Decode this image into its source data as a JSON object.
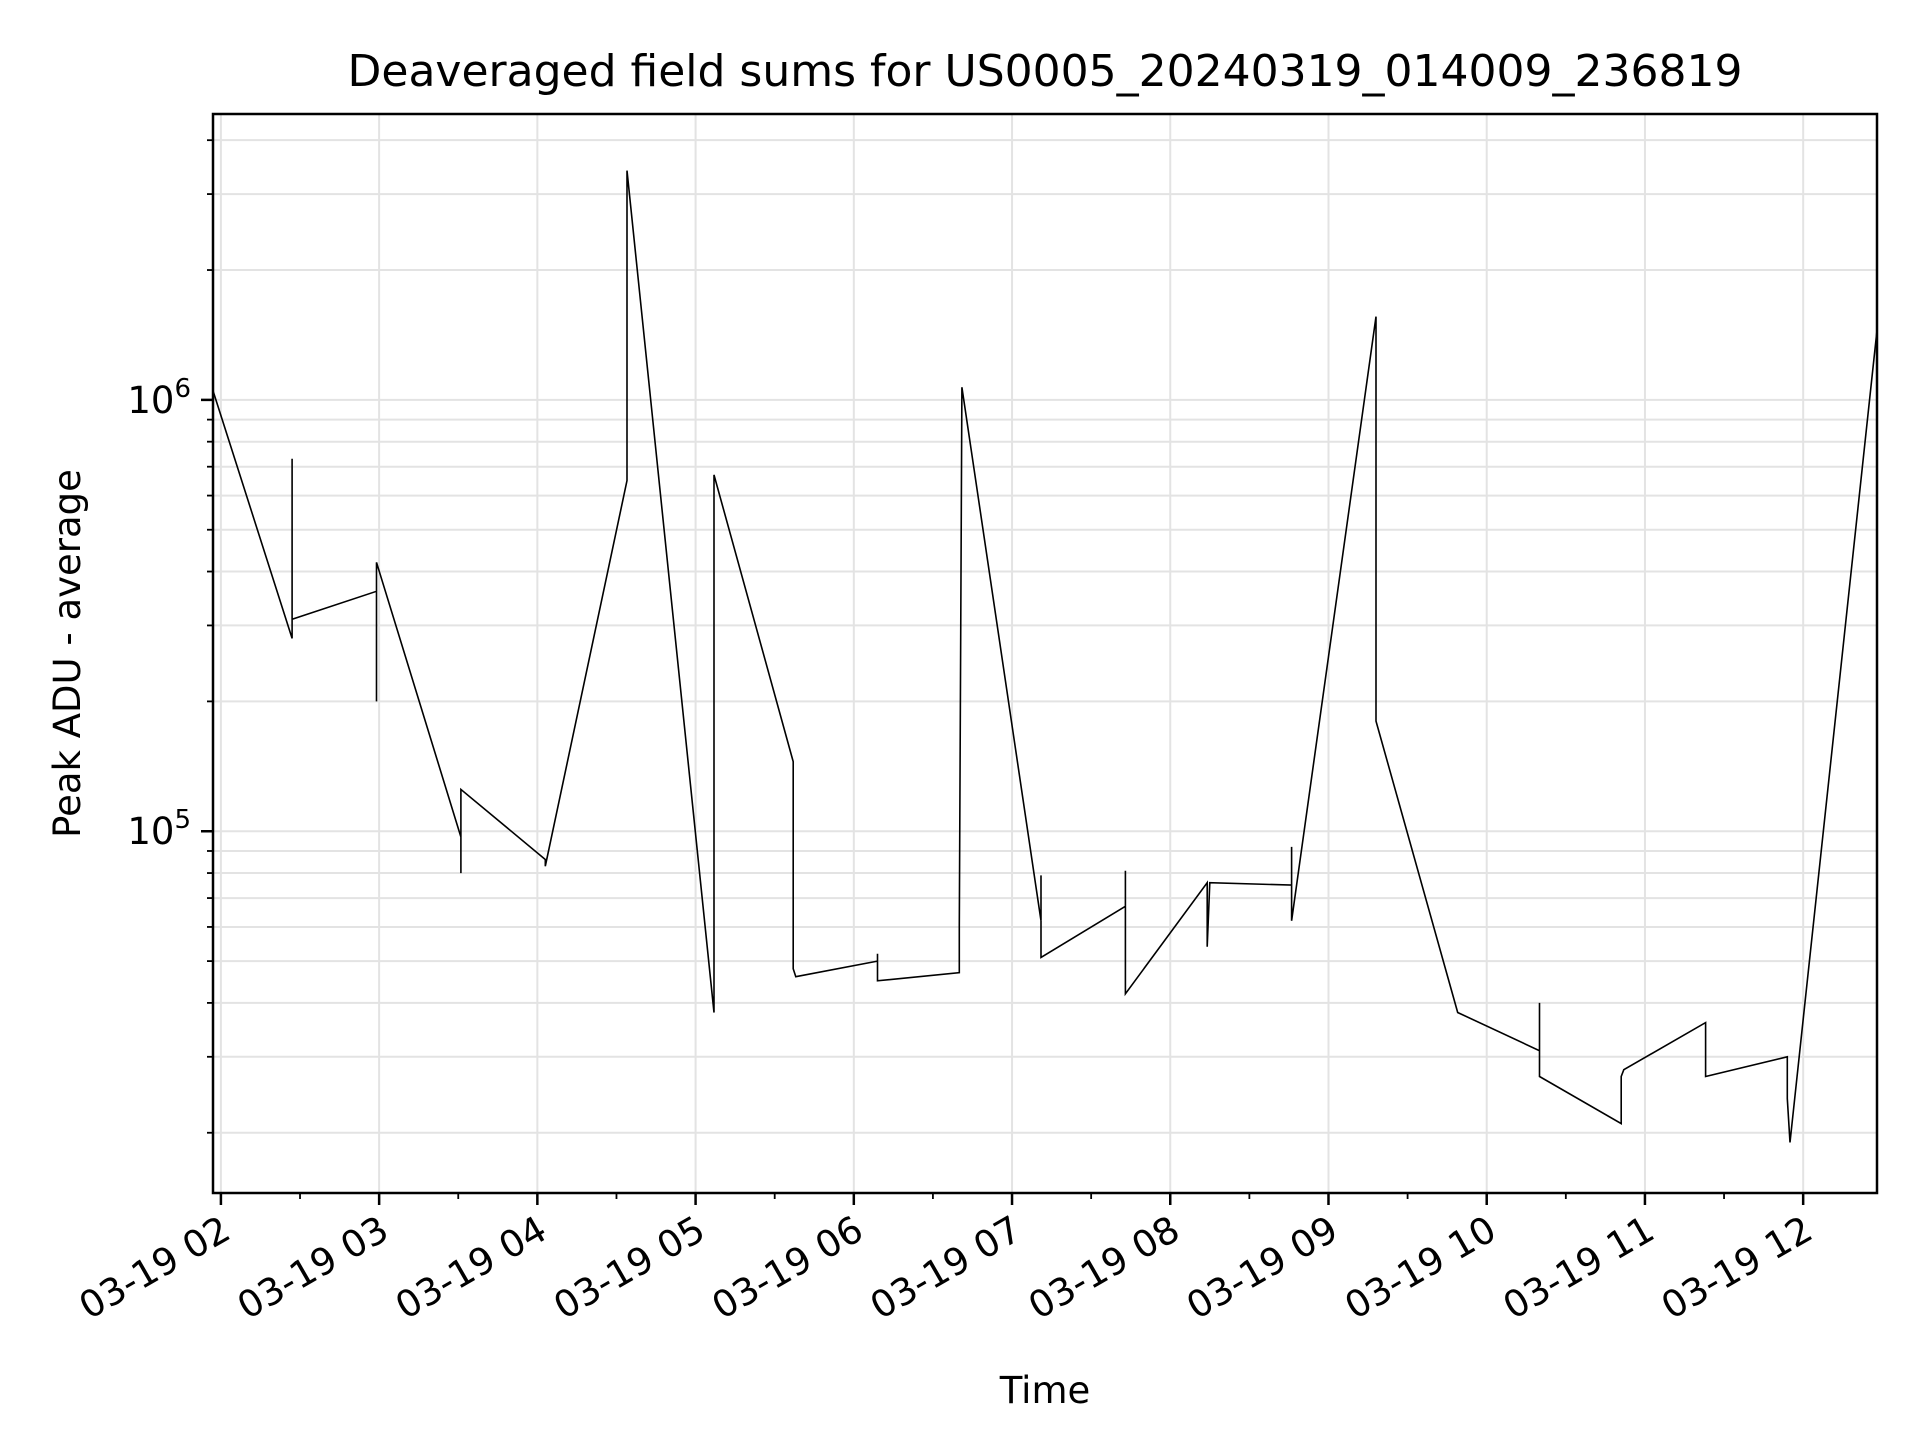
{
  "chart_data": {
    "type": "line",
    "title": "Deaveraged field sums for US0005_20240319_014009_236819",
    "xlabel": "Time",
    "ylabel": "Peak ADU - average",
    "yscale": "log",
    "grid": true,
    "xlim": [
      "2024-03-19 01:57",
      "2024-03-19 12:28"
    ],
    "ylim": [
      14500,
      4600000
    ],
    "x_ticks": [
      {
        "value": "2024-03-19 02:00",
        "label": "03-19 02"
      },
      {
        "value": "2024-03-19 03:00",
        "label": "03-19 03"
      },
      {
        "value": "2024-03-19 04:00",
        "label": "03-19 04"
      },
      {
        "value": "2024-03-19 05:00",
        "label": "03-19 05"
      },
      {
        "value": "2024-03-19 06:00",
        "label": "03-19 06"
      },
      {
        "value": "2024-03-19 07:00",
        "label": "03-19 07"
      },
      {
        "value": "2024-03-19 08:00",
        "label": "03-19 08"
      },
      {
        "value": "2024-03-19 09:00",
        "label": "03-19 09"
      },
      {
        "value": "2024-03-19 10:00",
        "label": "03-19 10"
      },
      {
        "value": "2024-03-19 11:00",
        "label": "03-19 11"
      },
      {
        "value": "2024-03-19 12:00",
        "label": "03-19 12"
      }
    ],
    "y_ticks": [
      {
        "value": 100000,
        "base": "10",
        "exp": "5"
      },
      {
        "value": 1000000,
        "base": "10",
        "exp": "6"
      }
    ],
    "series": [
      {
        "color": "#000000",
        "x": [
          "2024-03-19 01:57",
          "2024-03-19 02:27",
          "2024-03-19 02:27",
          "2024-03-19 02:27",
          "2024-03-19 02:59",
          "2024-03-19 02:59",
          "2024-03-19 02:59",
          "2024-03-19 03:31",
          "2024-03-19 03:31",
          "2024-03-19 03:31",
          "2024-03-19 04:03",
          "2024-03-19 04:03",
          "2024-03-19 04:34",
          "2024-03-19 04:34",
          "2024-03-19 05:07",
          "2024-03-19 05:07",
          "2024-03-19 05:37",
          "2024-03-19 05:37",
          "2024-03-19 05:38",
          "2024-03-19 06:09",
          "2024-03-19 06:09",
          "2024-03-19 06:09",
          "2024-03-19 06:40",
          "2024-03-19 06:40",
          "2024-03-19 06:41",
          "2024-03-19 07:11",
          "2024-03-19 07:11",
          "2024-03-19 07:11",
          "2024-03-19 07:43",
          "2024-03-19 07:43",
          "2024-03-19 07:43",
          "2024-03-19 08:14",
          "2024-03-19 08:14",
          "2024-03-19 08:15",
          "2024-03-19 08:46",
          "2024-03-19 08:46",
          "2024-03-19 08:46",
          "2024-03-19 09:18",
          "2024-03-19 09:18",
          "2024-03-19 09:49",
          "2024-03-19 10:20",
          "2024-03-19 10:20",
          "2024-03-19 10:20",
          "2024-03-19 10:51",
          "2024-03-19 10:51",
          "2024-03-19 10:52",
          "2024-03-19 11:23",
          "2024-03-19 11:23",
          "2024-03-19 11:54",
          "2024-03-19 11:54",
          "2024-03-19 11:55",
          "2024-03-19 12:28"
        ],
        "y": [
          1050000,
          280000,
          730000,
          310000,
          360000,
          200000,
          420000,
          97000,
          80000,
          125000,
          86000,
          83000,
          650000,
          3400000,
          38000,
          670000,
          145000,
          48000,
          46000,
          50000,
          52000,
          45000,
          47000,
          60000,
          1070000,
          62000,
          79000,
          51000,
          67000,
          81000,
          42000,
          76000,
          54000,
          76000,
          75000,
          92000,
          62000,
          1560000,
          180000,
          38000,
          31000,
          40000,
          27000,
          21000,
          27000,
          28000,
          36000,
          27000,
          30000,
          24000,
          19000,
          1450000
        ]
      }
    ]
  }
}
